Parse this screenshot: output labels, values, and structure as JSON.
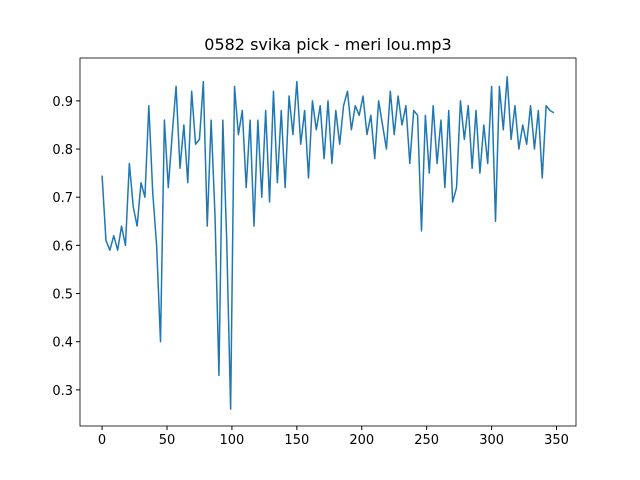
{
  "chart_data": {
    "type": "line",
    "title": "0582 svika pick - meri lou.mp3",
    "x": [
      0,
      3,
      6,
      9,
      12,
      15,
      18,
      21,
      24,
      27,
      30,
      33,
      36,
      39,
      42,
      45,
      48,
      51,
      54,
      57,
      60,
      63,
      66,
      69,
      72,
      75,
      78,
      81,
      84,
      87,
      90,
      93,
      96,
      99,
      102,
      105,
      108,
      111,
      114,
      117,
      120,
      123,
      126,
      129,
      132,
      135,
      138,
      141,
      144,
      147,
      150,
      153,
      156,
      159,
      162,
      165,
      168,
      171,
      174,
      177,
      180,
      183,
      186,
      189,
      192,
      195,
      198,
      201,
      204,
      207,
      210,
      213,
      216,
      219,
      222,
      225,
      228,
      231,
      234,
      237,
      240,
      243,
      246,
      249,
      252,
      255,
      258,
      261,
      264,
      267,
      270,
      273,
      276,
      279,
      282,
      285,
      288,
      291,
      294,
      297,
      300,
      303,
      306,
      309,
      312,
      315,
      318,
      321,
      324,
      327,
      330,
      333,
      336,
      339,
      342,
      345,
      348
    ],
    "series": [
      {
        "color": "#1f77b4",
        "values": [
          0.745,
          0.61,
          0.59,
          0.62,
          0.59,
          0.64,
          0.6,
          0.77,
          0.68,
          0.64,
          0.73,
          0.7,
          0.89,
          0.71,
          0.6,
          0.4,
          0.86,
          0.72,
          0.83,
          0.93,
          0.76,
          0.85,
          0.73,
          0.92,
          0.81,
          0.82,
          0.94,
          0.64,
          0.86,
          0.66,
          0.33,
          0.86,
          0.61,
          0.26,
          0.93,
          0.83,
          0.88,
          0.72,
          0.86,
          0.64,
          0.86,
          0.7,
          0.88,
          0.69,
          0.92,
          0.73,
          0.88,
          0.72,
          0.91,
          0.83,
          0.94,
          0.81,
          0.88,
          0.74,
          0.9,
          0.84,
          0.89,
          0.78,
          0.9,
          0.77,
          0.88,
          0.81,
          0.89,
          0.92,
          0.84,
          0.89,
          0.87,
          0.91,
          0.83,
          0.87,
          0.78,
          0.9,
          0.85,
          0.8,
          0.92,
          0.83,
          0.91,
          0.85,
          0.89,
          0.77,
          0.88,
          0.87,
          0.63,
          0.87,
          0.75,
          0.89,
          0.77,
          0.86,
          0.72,
          0.88,
          0.69,
          0.72,
          0.9,
          0.82,
          0.89,
          0.76,
          0.88,
          0.75,
          0.85,
          0.77,
          0.93,
          0.65,
          0.93,
          0.84,
          0.95,
          0.82,
          0.89,
          0.8,
          0.85,
          0.81,
          0.89,
          0.8,
          0.88,
          0.74,
          0.89,
          0.88,
          0.875
        ]
      }
    ],
    "xlim": [
      -17,
      365
    ],
    "xticks": [
      0,
      50,
      100,
      150,
      200,
      250,
      300,
      350
    ],
    "ylim": [
      0.225,
      0.989
    ],
    "yticks": [
      0.3,
      0.4,
      0.5,
      0.6,
      0.7,
      0.8,
      0.9
    ]
  }
}
